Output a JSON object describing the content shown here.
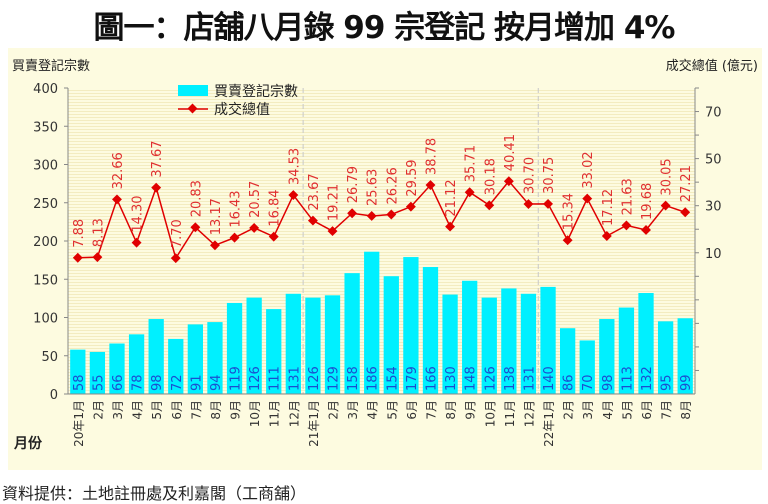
{
  "title": "圖一：店舖八月錄 99 宗登記  按月增加 4%",
  "source": "資料提供：土地註冊處及利嘉閣（工商舖）",
  "chart_data": {
    "type": "bar+line",
    "ylabel_left": "買賣登記宗數",
    "ylabel_right": "成交總值 (億元)",
    "xlabel": "月份",
    "ylim_left": [
      0,
      400
    ],
    "yticks_left": [
      0,
      50,
      100,
      150,
      200,
      250,
      300,
      350,
      400
    ],
    "ylim_right": [
      -50,
      80
    ],
    "yticks_right": [
      10,
      30,
      50,
      70
    ],
    "grid": false,
    "legend_position": "top-left",
    "categories": [
      "20年1月",
      "2月",
      "3月",
      "4月",
      "5月",
      "6月",
      "7月",
      "8月",
      "9月",
      "10月",
      "11月",
      "12月",
      "21年1月",
      "2月",
      "3月",
      "4月",
      "5月",
      "6月",
      "7月",
      "8月",
      "9月",
      "10月",
      "11月",
      "12月",
      "22年1月",
      "2月",
      "3月",
      "4月",
      "5月",
      "6月",
      "7月",
      "8月"
    ],
    "series": [
      {
        "name": "買賣登記宗數",
        "type": "bar",
        "axis": "left",
        "color": "#00f0ff",
        "values": [
          58,
          55,
          66,
          78,
          98,
          72,
          91,
          94,
          119,
          126,
          111,
          131,
          126,
          129,
          158,
          186,
          154,
          179,
          166,
          130,
          148,
          126,
          138,
          131,
          140,
          86,
          70,
          98,
          113,
          132,
          95,
          99
        ]
      },
      {
        "name": "成交總值",
        "type": "line",
        "axis": "right",
        "color": "#e00000",
        "values": [
          "7.88",
          "8.13",
          "32.66",
          "14.30",
          "37.67",
          "7.70",
          "20.83",
          "13.17",
          "16.43",
          "20.57",
          "16.84",
          "34.53",
          "23.67",
          "19.21",
          "26.79",
          "25.63",
          "26.26",
          "29.59",
          "38.78",
          "21.12",
          "35.71",
          "30.18",
          "40.41",
          "30.70",
          "30.75",
          "15.34",
          "33.02",
          "17.12",
          "21.63",
          "19.68",
          "30.05",
          "27.21"
        ]
      }
    ]
  }
}
